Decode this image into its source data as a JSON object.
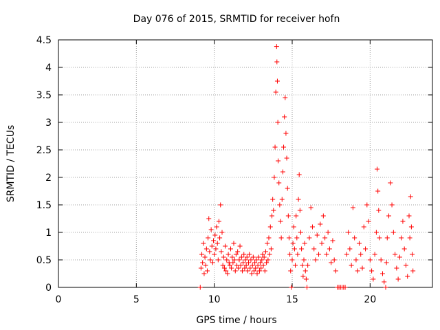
{
  "chart_data": {
    "type": "scatter",
    "title": "Day 076 of 2015, SRMTID for receiver hofn",
    "xlabel": "GPS time / hours",
    "ylabel": "SRMTID / TECUs",
    "xlim": [
      0,
      24
    ],
    "ylim": [
      0,
      4.5
    ],
    "xticks": [
      0,
      5,
      10,
      15,
      20
    ],
    "yticks": [
      0,
      0.5,
      1,
      1.5,
      2,
      2.5,
      3,
      3.5,
      4,
      4.5
    ],
    "xtick_labels": [
      "0",
      "5",
      "10",
      "15",
      "20"
    ],
    "ytick_labels": [
      "0",
      "0.5",
      "1",
      "1.5",
      "2",
      "2.5",
      "3",
      "3.5",
      "4",
      "4.5"
    ],
    "grid": true,
    "marker": "+",
    "color": "#ff0000",
    "series": [
      {
        "name": "SRMTID",
        "points": [
          [
            9.1,
            0.0
          ],
          [
            9.15,
            0.35
          ],
          [
            9.2,
            0.6
          ],
          [
            9.25,
            0.45
          ],
          [
            9.3,
            0.8
          ],
          [
            9.35,
            0.25
          ],
          [
            9.4,
            0.55
          ],
          [
            9.45,
            0.4
          ],
          [
            9.5,
            0.7
          ],
          [
            9.55,
            0.3
          ],
          [
            9.6,
            0.9
          ],
          [
            9.65,
            1.25
          ],
          [
            9.7,
            0.65
          ],
          [
            9.75,
            0.5
          ],
          [
            9.8,
            1.05
          ],
          [
            9.85,
            0.75
          ],
          [
            9.9,
            0.45
          ],
          [
            9.95,
            0.85
          ],
          [
            10.0,
            0.6
          ],
          [
            10.05,
            0.95
          ],
          [
            10.1,
            0.7
          ],
          [
            10.15,
            1.1
          ],
          [
            10.2,
            0.8
          ],
          [
            10.25,
            0.5
          ],
          [
            10.3,
            1.2
          ],
          [
            10.35,
            0.9
          ],
          [
            10.4,
            1.5
          ],
          [
            10.45,
            0.65
          ],
          [
            10.5,
            1.0
          ],
          [
            10.55,
            0.4
          ],
          [
            10.6,
            0.55
          ],
          [
            10.65,
            0.35
          ],
          [
            10.7,
            0.75
          ],
          [
            10.75,
            0.3
          ],
          [
            10.8,
            0.5
          ],
          [
            10.85,
            0.25
          ],
          [
            10.9,
            0.6
          ],
          [
            10.95,
            0.45
          ],
          [
            11.0,
            0.4
          ],
          [
            11.05,
            0.7
          ],
          [
            11.1,
            0.35
          ],
          [
            11.15,
            0.55
          ],
          [
            11.2,
            0.45
          ],
          [
            11.25,
            0.8
          ],
          [
            11.3,
            0.5
          ],
          [
            11.35,
            0.3
          ],
          [
            11.4,
            0.6
          ],
          [
            11.45,
            0.4
          ],
          [
            11.5,
            0.65
          ],
          [
            11.55,
            0.35
          ],
          [
            11.6,
            0.5
          ],
          [
            11.65,
            0.75
          ],
          [
            11.7,
            0.4
          ],
          [
            11.75,
            0.55
          ],
          [
            11.8,
            0.3
          ],
          [
            11.85,
            0.45
          ],
          [
            11.9,
            0.6
          ],
          [
            11.95,
            0.35
          ],
          [
            12.0,
            0.5
          ],
          [
            12.05,
            0.4
          ],
          [
            12.1,
            0.55
          ],
          [
            12.15,
            0.3
          ],
          [
            12.2,
            0.45
          ],
          [
            12.25,
            0.6
          ],
          [
            12.3,
            0.35
          ],
          [
            12.35,
            0.5
          ],
          [
            12.4,
            0.25
          ],
          [
            12.45,
            0.4
          ],
          [
            12.5,
            0.55
          ],
          [
            12.55,
            0.3
          ],
          [
            12.6,
            0.45
          ],
          [
            12.65,
            0.35
          ],
          [
            12.7,
            0.5
          ],
          [
            12.75,
            0.25
          ],
          [
            12.8,
            0.4
          ],
          [
            12.85,
            0.55
          ],
          [
            12.9,
            0.3
          ],
          [
            12.95,
            0.45
          ],
          [
            13.0,
            0.35
          ],
          [
            13.05,
            0.5
          ],
          [
            13.1,
            0.6
          ],
          [
            13.15,
            0.4
          ],
          [
            13.2,
            0.55
          ],
          [
            13.25,
            0.3
          ],
          [
            13.3,
            0.65
          ],
          [
            13.35,
            0.45
          ],
          [
            13.4,
            0.8
          ],
          [
            13.45,
            0.5
          ],
          [
            13.5,
            0.9
          ],
          [
            13.55,
            0.6
          ],
          [
            13.6,
            1.1
          ],
          [
            13.65,
            0.7
          ],
          [
            13.7,
            1.3
          ],
          [
            13.75,
            1.6
          ],
          [
            13.8,
            1.4
          ],
          [
            13.85,
            2.0
          ],
          [
            13.9,
            2.55
          ],
          [
            13.95,
            3.55
          ],
          [
            14.0,
            4.38
          ],
          [
            14.02,
            4.1
          ],
          [
            14.05,
            3.75
          ],
          [
            14.08,
            3.0
          ],
          [
            14.1,
            2.3
          ],
          [
            14.15,
            1.9
          ],
          [
            14.2,
            1.5
          ],
          [
            14.25,
            1.2
          ],
          [
            14.3,
            0.9
          ],
          [
            14.35,
            1.6
          ],
          [
            14.4,
            2.1
          ],
          [
            14.45,
            2.55
          ],
          [
            14.5,
            3.1
          ],
          [
            14.55,
            3.45
          ],
          [
            14.6,
            2.8
          ],
          [
            14.65,
            2.35
          ],
          [
            14.7,
            1.8
          ],
          [
            14.75,
            1.3
          ],
          [
            14.8,
            0.9
          ],
          [
            14.85,
            0.6
          ],
          [
            14.9,
            0.3
          ],
          [
            14.95,
            0.0
          ],
          [
            15.0,
            0.5
          ],
          [
            15.05,
            0.8
          ],
          [
            15.1,
            1.1
          ],
          [
            15.15,
            0.7
          ],
          [
            15.2,
            0.4
          ],
          [
            15.25,
            1.3
          ],
          [
            15.3,
            0.9
          ],
          [
            15.35,
            0.6
          ],
          [
            15.4,
            1.6
          ],
          [
            15.45,
            2.05
          ],
          [
            15.5,
            1.4
          ],
          [
            15.55,
            1.0
          ],
          [
            15.6,
            0.7
          ],
          [
            15.65,
            0.4
          ],
          [
            15.7,
            0.2
          ],
          [
            15.75,
            0.5
          ],
          [
            15.8,
            0.8
          ],
          [
            15.85,
            0.3
          ],
          [
            15.9,
            0.15
          ],
          [
            15.95,
            0.0
          ],
          [
            16.0,
            0.4
          ],
          [
            16.1,
            0.9
          ],
          [
            16.2,
            1.45
          ],
          [
            16.3,
            1.1
          ],
          [
            16.4,
            0.7
          ],
          [
            16.5,
            0.5
          ],
          [
            16.6,
            0.95
          ],
          [
            16.7,
            0.6
          ],
          [
            16.8,
            1.15
          ],
          [
            16.9,
            0.8
          ],
          [
            17.0,
            1.3
          ],
          [
            17.1,
            0.9
          ],
          [
            17.2,
            0.6
          ],
          [
            17.3,
            1.0
          ],
          [
            17.4,
            0.7
          ],
          [
            17.5,
            0.45
          ],
          [
            17.6,
            0.85
          ],
          [
            17.7,
            0.5
          ],
          [
            17.8,
            0.3
          ],
          [
            17.9,
            0.0
          ],
          [
            18.0,
            0.0
          ],
          [
            18.1,
            0.0
          ],
          [
            18.2,
            0.0
          ],
          [
            18.3,
            0.0
          ],
          [
            18.4,
            0.0
          ],
          [
            18.5,
            0.6
          ],
          [
            18.6,
            1.0
          ],
          [
            18.7,
            0.7
          ],
          [
            18.8,
            0.4
          ],
          [
            18.9,
            1.45
          ],
          [
            19.0,
            0.9
          ],
          [
            19.1,
            0.5
          ],
          [
            19.2,
            0.3
          ],
          [
            19.3,
            0.8
          ],
          [
            19.4,
            0.6
          ],
          [
            19.5,
            0.35
          ],
          [
            19.6,
            1.1
          ],
          [
            19.7,
            0.7
          ],
          [
            19.8,
            1.5
          ],
          [
            19.9,
            1.2
          ],
          [
            20.0,
            0.5
          ],
          [
            20.1,
            0.3
          ],
          [
            20.2,
            0.15
          ],
          [
            20.3,
            0.6
          ],
          [
            20.4,
            1.0
          ],
          [
            20.45,
            2.15
          ],
          [
            20.5,
            1.75
          ],
          [
            20.55,
            1.4
          ],
          [
            20.6,
            0.9
          ],
          [
            20.7,
            0.5
          ],
          [
            20.8,
            0.25
          ],
          [
            20.9,
            0.1
          ],
          [
            21.0,
            0.0
          ],
          [
            21.05,
            0.45
          ],
          [
            21.1,
            0.9
          ],
          [
            21.2,
            1.3
          ],
          [
            21.3,
            1.9
          ],
          [
            21.4,
            1.5
          ],
          [
            21.5,
            1.0
          ],
          [
            21.6,
            0.6
          ],
          [
            21.7,
            0.35
          ],
          [
            21.8,
            0.15
          ],
          [
            21.9,
            0.55
          ],
          [
            22.0,
            0.9
          ],
          [
            22.1,
            1.2
          ],
          [
            22.2,
            0.7
          ],
          [
            22.3,
            0.4
          ],
          [
            22.4,
            0.2
          ],
          [
            22.5,
            1.3
          ],
          [
            22.55,
            0.9
          ],
          [
            22.6,
            1.65
          ],
          [
            22.65,
            1.1
          ],
          [
            22.7,
            0.6
          ],
          [
            22.75,
            0.3
          ]
        ]
      }
    ]
  }
}
